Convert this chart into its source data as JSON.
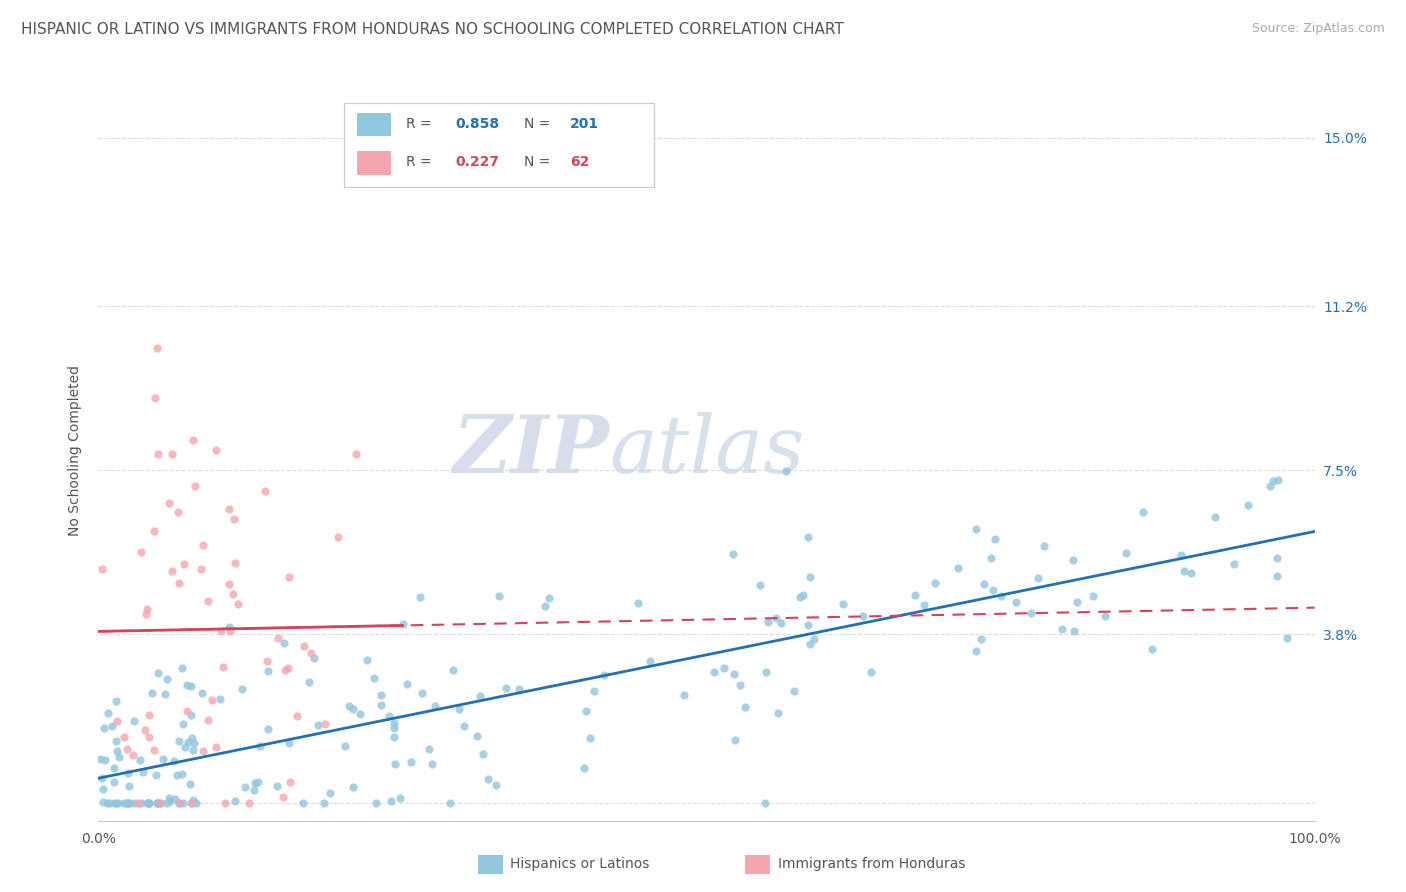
{
  "title": "HISPANIC OR LATINO VS IMMIGRANTS FROM HONDURAS NO SCHOOLING COMPLETED CORRELATION CHART",
  "source": "Source: ZipAtlas.com",
  "ylabel": "No Schooling Completed",
  "y_tick_labels": [
    "",
    "3.8%",
    "7.5%",
    "11.2%",
    "15.0%"
  ],
  "y_tick_values": [
    0.0,
    0.038,
    0.075,
    0.112,
    0.15
  ],
  "xlim": [
    0.0,
    1.0
  ],
  "ylim": [
    -0.004,
    0.163
  ],
  "blue_color": "#92c5de",
  "pink_color": "#f4a5b0",
  "blue_line_color": "#2171b5",
  "pink_line_color": "#d6425a",
  "legend_blue_R": "0.858",
  "legend_blue_N": "201",
  "legend_pink_R": "0.227",
  "legend_pink_N": "62",
  "legend_label_blue": "Hispanics or Latinos",
  "legend_label_pink": "Immigrants from Honduras",
  "watermark_zip": "ZIP",
  "watermark_atlas": "atlas",
  "title_fontsize": 11,
  "source_fontsize": 9,
  "axis_label_fontsize": 10,
  "tick_fontsize": 10,
  "blue_seed": 42,
  "pink_seed": 99
}
